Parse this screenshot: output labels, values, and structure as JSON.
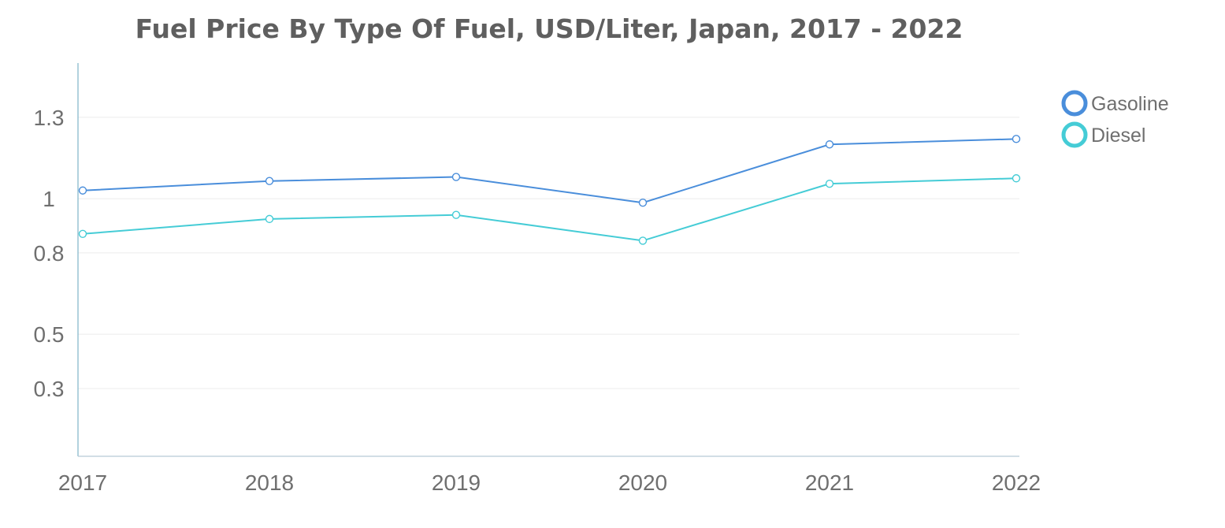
{
  "chart_data": {
    "type": "line",
    "title": "Fuel Price By Type Of Fuel, USD/Liter, Japan, 2017 - 2022",
    "xlabel": "",
    "ylabel": "",
    "categories": [
      "2017",
      "2018",
      "2019",
      "2020",
      "2021",
      "2022"
    ],
    "y_ticks": [
      0.3,
      0.5,
      0.8,
      1,
      1.3
    ],
    "y_tick_labels": [
      "0.3",
      "0.5",
      "0.8",
      "1",
      "1.3"
    ],
    "ylim": [
      0.05,
      1.5
    ],
    "grid": true,
    "legend_position": "top-right",
    "series": [
      {
        "name": "Gasoline",
        "color": "#4a8edb",
        "values": [
          1.03,
          1.065,
          1.08,
          0.985,
          1.2,
          1.22
        ]
      },
      {
        "name": "Diesel",
        "color": "#45ccd6",
        "values": [
          0.87,
          0.925,
          0.94,
          0.845,
          1.055,
          1.075
        ]
      }
    ]
  }
}
